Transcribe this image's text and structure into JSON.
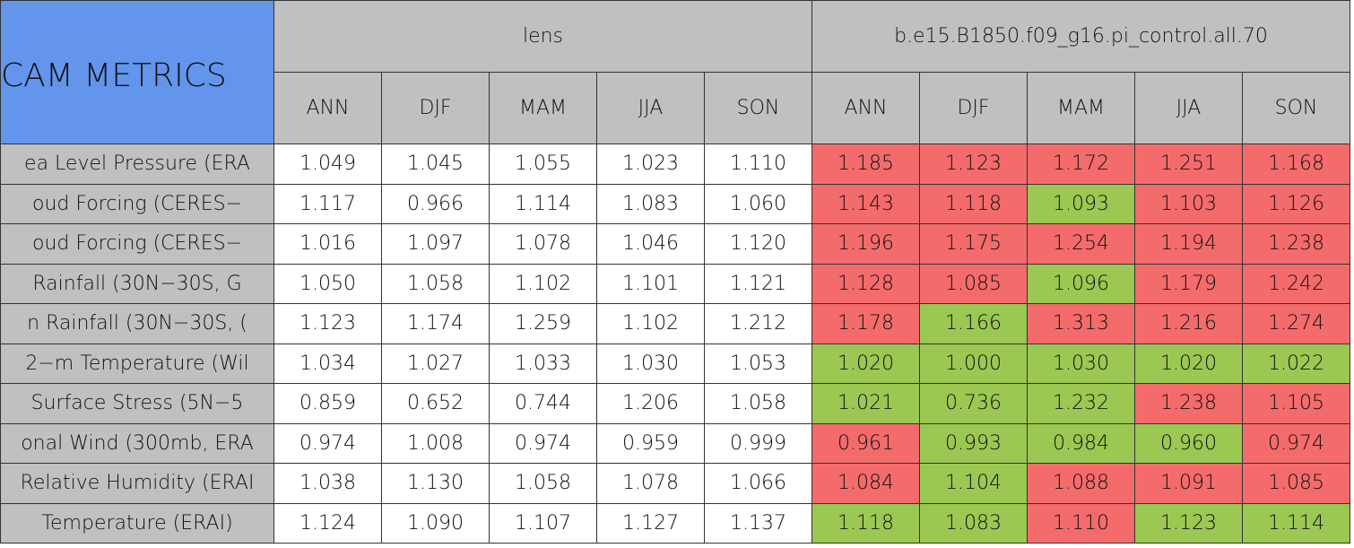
{
  "header": {
    "title": "CAM METRICS",
    "groups": [
      "lens",
      "b.e15.B1850.f09_g16.pi_control.all.70"
    ],
    "seasons": [
      "ANN",
      "DJF",
      "MAM",
      "JJA",
      "SON"
    ]
  },
  "table": {
    "rows": [
      {
        "label": "ea Level Pressure (ERA",
        "values": [
          "1.049",
          "1.045",
          "1.055",
          "1.023",
          "1.110",
          "1.185",
          "1.123",
          "1.172",
          "1.251",
          "1.168"
        ],
        "colors": [
          "#f46b6b",
          "#f46b6b",
          "#f46b6b",
          "#f46b6b",
          "#f46b6b"
        ]
      },
      {
        "label": "oud Forcing (CERES−",
        "values": [
          "1.117",
          "0.966",
          "1.114",
          "1.083",
          "1.060",
          "1.143",
          "1.118",
          "1.093",
          "1.103",
          "1.126"
        ],
        "colors": [
          "#f46b6b",
          "#f46b6b",
          "#9bc753",
          "#f46b6b",
          "#f46b6b"
        ]
      },
      {
        "label": "oud Forcing (CERES−",
        "values": [
          "1.016",
          "1.097",
          "1.078",
          "1.046",
          "1.120",
          "1.196",
          "1.175",
          "1.254",
          "1.194",
          "1.238"
        ],
        "colors": [
          "#f46b6b",
          "#f46b6b",
          "#f46b6b",
          "#f46b6b",
          "#f46b6b"
        ]
      },
      {
        "label": "Rainfall (30N−30S, G",
        "values": [
          "1.050",
          "1.058",
          "1.102",
          "1.101",
          "1.121",
          "1.128",
          "1.085",
          "1.096",
          "1.179",
          "1.242"
        ],
        "colors": [
          "#f46b6b",
          "#f46b6b",
          "#9bc753",
          "#f46b6b",
          "#f46b6b"
        ]
      },
      {
        "label": "n Rainfall (30N−30S, (",
        "values": [
          "1.123",
          "1.174",
          "1.259",
          "1.102",
          "1.212",
          "1.178",
          "1.166",
          "1.313",
          "1.216",
          "1.274"
        ],
        "colors": [
          "#f46b6b",
          "#9bc753",
          "#f46b6b",
          "#f46b6b",
          "#f46b6b"
        ]
      },
      {
        "label": "2−m Temperature (Wil",
        "values": [
          "1.034",
          "1.027",
          "1.033",
          "1.030",
          "1.053",
          "1.020",
          "1.000",
          "1.030",
          "1.020",
          "1.022"
        ],
        "colors": [
          "#9bc753",
          "#9bc753",
          "#9bc753",
          "#9bc753",
          "#9bc753"
        ]
      },
      {
        "label": "Surface Stress (5N−5",
        "values": [
          "0.859",
          "0.652",
          "0.744",
          "1.206",
          "1.058",
          "1.021",
          "0.736",
          "1.232",
          "1.238",
          "1.105"
        ],
        "colors": [
          "#9bc753",
          "#9bc753",
          "#9bc753",
          "#f46b6b",
          "#f46b6b"
        ]
      },
      {
        "label": "onal Wind (300mb, ERA",
        "values": [
          "0.974",
          "1.008",
          "0.974",
          "0.959",
          "0.999",
          "0.961",
          "0.993",
          "0.984",
          "0.960",
          "0.974"
        ],
        "colors": [
          "#f46b6b",
          "#9bc753",
          "#9bc753",
          "#9bc753",
          "#f46b6b"
        ]
      },
      {
        "label": "Relative Humidity (ERAI",
        "values": [
          "1.038",
          "1.130",
          "1.058",
          "1.078",
          "1.066",
          "1.084",
          "1.104",
          "1.088",
          "1.091",
          "1.085"
        ],
        "colors": [
          "#f46b6b",
          "#9bc753",
          "#f46b6b",
          "#f46b6b",
          "#f46b6b"
        ]
      },
      {
        "label": "Temperature (ERAI)",
        "values": [
          "1.124",
          "1.090",
          "1.107",
          "1.127",
          "1.137",
          "1.118",
          "1.083",
          "1.110",
          "1.123",
          "1.114"
        ],
        "colors": [
          "#9bc753",
          "#9bc753",
          "#f46b6b",
          "#9bc753",
          "#9bc753"
        ]
      }
    ]
  }
}
